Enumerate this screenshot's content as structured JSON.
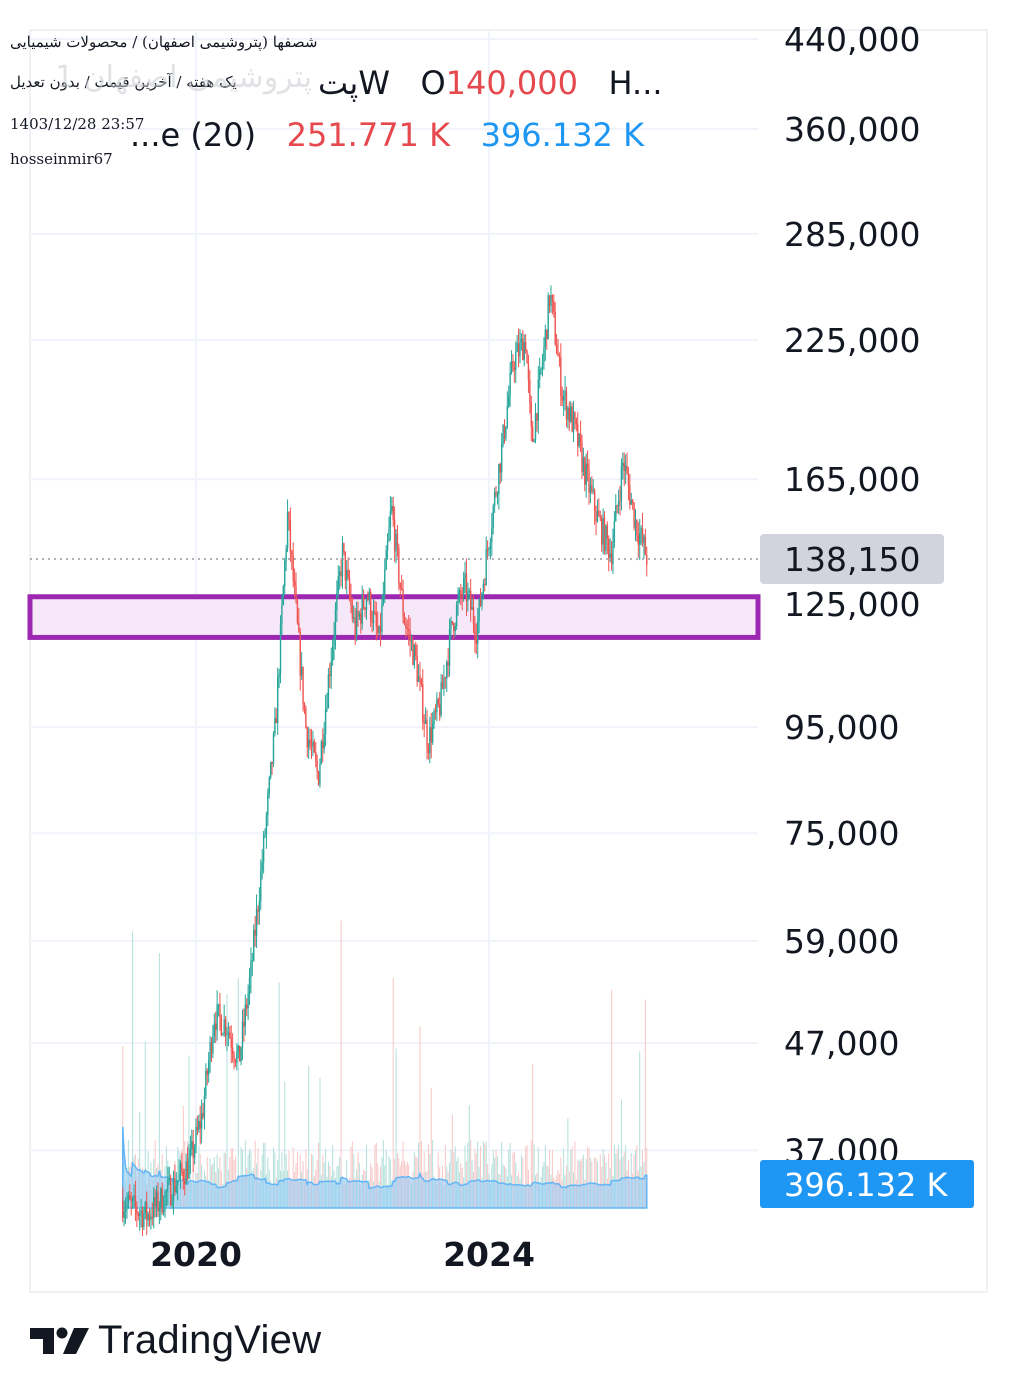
{
  "header": {
    "title": "شصفها (پتروشیمی اصفهان) / محصولات شیمیایی",
    "subtitle": "یک هفته / آخرین قیمت / بدون تعدیل",
    "datetime": "1403/12/28 23:57",
    "username": "hosseinmir67",
    "ghost_text": "پتروشیمی اصفهان 1",
    "legend_symbol": "پتW",
    "legend_open_label": "O",
    "legend_open_value": "140,000",
    "legend_more": "H...",
    "volume_label": "...e (20)",
    "volume_value_1": "251.771 K",
    "volume_value_2": "396.132 K"
  },
  "brand": {
    "name": "TradingView"
  },
  "colors": {
    "up": "#26a69a",
    "down": "#ef5350",
    "zone_border": "#9c27b0",
    "zone_fill": "#f6e8f8",
    "volume": "#90caf9",
    "volume_label_bg": "#1e96f3",
    "price_label_bg": "#d1d4dc"
  },
  "chart_data": {
    "type": "candlestick",
    "scale": "log",
    "grid": true,
    "xlabel": "",
    "ylabel": "",
    "y_ticks": [
      440000,
      360000,
      285000,
      225000,
      165000,
      125000,
      95000,
      75000,
      59000,
      47000,
      37000
    ],
    "y_tick_labels": [
      "440,000",
      "360,000",
      "285,000",
      "225,000",
      "165,000",
      "125,000",
      "95,000",
      "75,000",
      "59,000",
      "47,000",
      "37,000"
    ],
    "x_tick_labels": [
      "2020",
      "2024"
    ],
    "last_price": 138150,
    "last_price_label": "138,150",
    "volume_last_label": "396.132 K",
    "support_zone": {
      "low": 116000,
      "high": 127000
    },
    "price_path": [
      [
        "2019-01",
        33000
      ],
      [
        "2019-05",
        32000
      ],
      [
        "2019-09",
        34000
      ],
      [
        "2019-12",
        36000
      ],
      [
        "2020-02",
        40000
      ],
      [
        "2020-04",
        50000
      ],
      [
        "2020-06",
        49000
      ],
      [
        "2020-08",
        45000
      ],
      [
        "2020-10",
        55000
      ],
      [
        "2020-12",
        72000
      ],
      [
        "2021-02",
        95000
      ],
      [
        "2021-04",
        152000
      ],
      [
        "2021-05",
        130000
      ],
      [
        "2021-07",
        95000
      ],
      [
        "2021-09",
        85000
      ],
      [
        "2021-11",
        110000
      ],
      [
        "2022-01",
        140000
      ],
      [
        "2022-03",
        118000
      ],
      [
        "2022-05",
        128000
      ],
      [
        "2022-07",
        115000
      ],
      [
        "2022-09",
        155000
      ],
      [
        "2022-11",
        122000
      ],
      [
        "2023-01",
        110000
      ],
      [
        "2023-03",
        92000
      ],
      [
        "2023-05",
        100000
      ],
      [
        "2023-07",
        120000
      ],
      [
        "2023-09",
        130000
      ],
      [
        "2023-11",
        118000
      ],
      [
        "2024-01",
        145000
      ],
      [
        "2024-03",
        175000
      ],
      [
        "2024-05",
        215000
      ],
      [
        "2024-07",
        225000
      ],
      [
        "2024-08",
        178000
      ],
      [
        "2024-10",
        220000
      ],
      [
        "2024-11",
        250000
      ],
      [
        "2025-01",
        200000
      ],
      [
        "2025-03",
        185000
      ],
      [
        "2025-05",
        165000
      ],
      [
        "2025-07",
        150000
      ],
      [
        "2025-09",
        140000
      ],
      [
        "2025-11",
        172000
      ],
      [
        "2026-01",
        150000
      ],
      [
        "2026-03",
        138150
      ]
    ]
  }
}
